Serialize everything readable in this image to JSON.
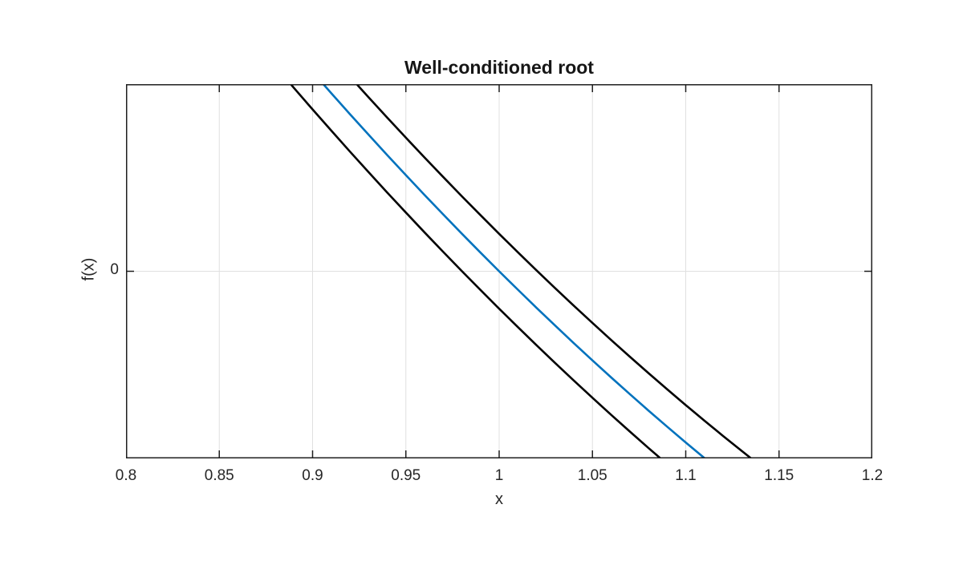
{
  "chart_data": {
    "type": "line",
    "title": "Well-conditioned root",
    "xlabel": "x",
    "ylabel": "f(x)",
    "xlim": [
      0.8,
      1.2
    ],
    "ylim": [
      -1,
      1
    ],
    "xticks": [
      0.8,
      0.85,
      0.9,
      0.95,
      1,
      1.05,
      1.1,
      1.15,
      1.2
    ],
    "xtick_labels": [
      "0.8",
      "0.85",
      "0.9",
      "0.95",
      "1",
      "1.05",
      "1.1",
      "1.15",
      "1.2"
    ],
    "yticks": [
      0
    ],
    "ytick_labels": [
      "0"
    ],
    "grid": true,
    "legend": "none",
    "band_offset": 0.2,
    "x": [
      0.86,
      0.87,
      0.88,
      0.89,
      0.9,
      0.91,
      0.92,
      0.93,
      0.94,
      0.95,
      0.96,
      0.97,
      0.98,
      0.99,
      1.0,
      1.01,
      1.02,
      1.03,
      1.04,
      1.05,
      1.06,
      1.07,
      1.08,
      1.09,
      1.1,
      1.11,
      1.12,
      1.13,
      1.14,
      1.15,
      1.16
    ],
    "series": [
      {
        "key": "upper-band",
        "name": "f(x)+delta",
        "color": "#000000",
        "width": 2.6,
        "values": [
          1.733,
          1.614,
          1.496,
          1.38,
          1.265,
          1.152,
          1.04,
          0.93,
          0.821,
          0.714,
          0.608,
          0.504,
          0.401,
          0.3,
          0.2,
          0.102,
          0.005,
          -0.09,
          -0.184,
          -0.276,
          -0.367,
          -0.456,
          -0.544,
          -0.63,
          -0.715,
          -0.798,
          -0.88,
          -0.96,
          -1.039,
          -1.116,
          -1.192
        ]
      },
      {
        "key": "lower-band",
        "name": "f(x)-delta",
        "color": "#000000",
        "width": 2.6,
        "values": [
          1.333,
          1.214,
          1.096,
          0.98,
          0.865,
          0.752,
          0.64,
          0.53,
          0.421,
          0.314,
          0.208,
          0.104,
          0.001,
          -0.1,
          -0.2,
          -0.298,
          -0.395,
          -0.49,
          -0.584,
          -0.676,
          -0.767,
          -0.856,
          -0.944,
          -1.03,
          -1.115,
          -1.198,
          -1.28,
          -1.36,
          -1.439,
          -1.516,
          -1.592
        ]
      },
      {
        "key": "center",
        "name": "f(x)",
        "color": "#0072BD",
        "width": 2.6,
        "values": [
          1.533,
          1.414,
          1.296,
          1.18,
          1.065,
          0.952,
          0.84,
          0.73,
          0.621,
          0.514,
          0.408,
          0.304,
          0.201,
          0.1,
          0.0,
          -0.098,
          -0.195,
          -0.29,
          -0.384,
          -0.476,
          -0.567,
          -0.656,
          -0.744,
          -0.83,
          -0.915,
          -0.998,
          -1.08,
          -1.16,
          -1.239,
          -1.316,
          -1.392
        ]
      }
    ],
    "colors": {
      "axis": "#1f1f1f",
      "tick_text": "#262626",
      "grid": "#e0e0e0",
      "background": "#ffffff",
      "accent_blue": "#0072BD"
    }
  }
}
